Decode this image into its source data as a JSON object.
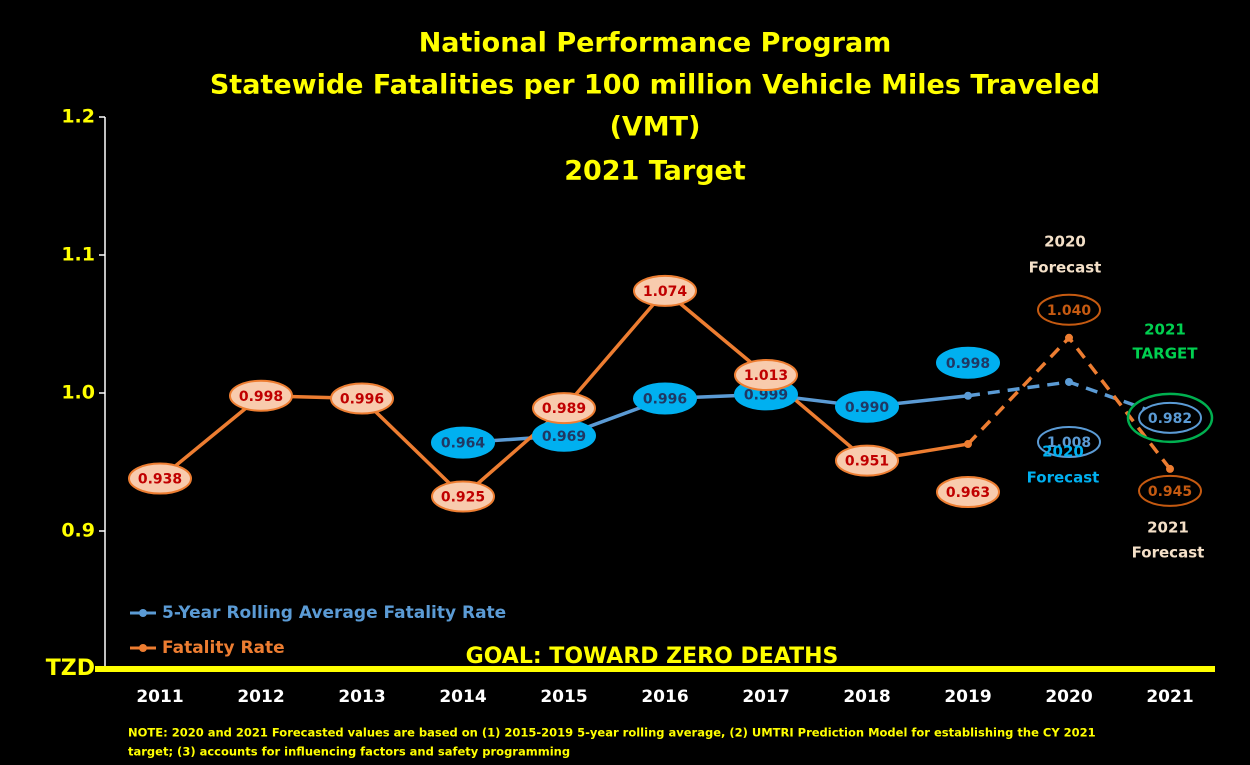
{
  "chart_data": {
    "type": "line",
    "title": [
      "National Performance Program",
      "Statewide Fatalities per 100 million Vehicle Miles Traveled",
      "(VMT)",
      "2021 Target"
    ],
    "categories": [
      "2011",
      "2012",
      "2013",
      "2014",
      "2015",
      "2016",
      "2017",
      "2018",
      "2019",
      "2020",
      "2021"
    ],
    "series": [
      {
        "name": "5-Year Rolling Average Fatality Rate",
        "color": "#5b9bd5",
        "values": [
          null,
          null,
          null,
          0.964,
          0.969,
          0.996,
          0.999,
          0.99,
          0.998,
          1.008,
          0.982
        ],
        "value_labels": [
          null,
          null,
          null,
          "0.964",
          "0.969",
          "0.996",
          "0.999",
          "0.990",
          "0.998",
          "1.008",
          "0.982"
        ]
      },
      {
        "name": "Fatality Rate",
        "color": "#ed7d31",
        "values": [
          0.938,
          0.998,
          0.996,
          0.925,
          0.989,
          1.074,
          1.013,
          0.951,
          0.963,
          1.04,
          0.945
        ],
        "value_labels": [
          "0.938",
          "0.998",
          "0.996",
          "0.925",
          "0.989",
          "1.074",
          "1.013",
          "0.951",
          "0.963",
          "1.040",
          "0.945"
        ]
      }
    ],
    "ylim": [
      0.8,
      1.2
    ],
    "yticks": [
      1.2,
      1.1,
      {
        "value": 1.0,
        "label": "1.0"
      },
      0.9,
      {
        "value": 0.8,
        "label": "TZD"
      }
    ],
    "legend": "bottom-left",
    "annotations": {
      "forecast_2020_fatality": [
        "2020",
        "Forecast"
      ],
      "forecast_2020_average": [
        "2020",
        "Forecast"
      ],
      "target_2021": [
        "2021",
        "TARGET"
      ],
      "forecast_2021": [
        "2021",
        "Forecast"
      ],
      "goal": "GOAL:  TOWARD ZERO DEATHS",
      "note": [
        "NOTE:  2020 and 2021 Forecasted values are based on (1) 2015-2019  5-year rolling average, (2) UMTRI Prediction Model for establishing the CY 2021",
        "target; (3) accounts for influencing factors and safety programming"
      ]
    }
  }
}
